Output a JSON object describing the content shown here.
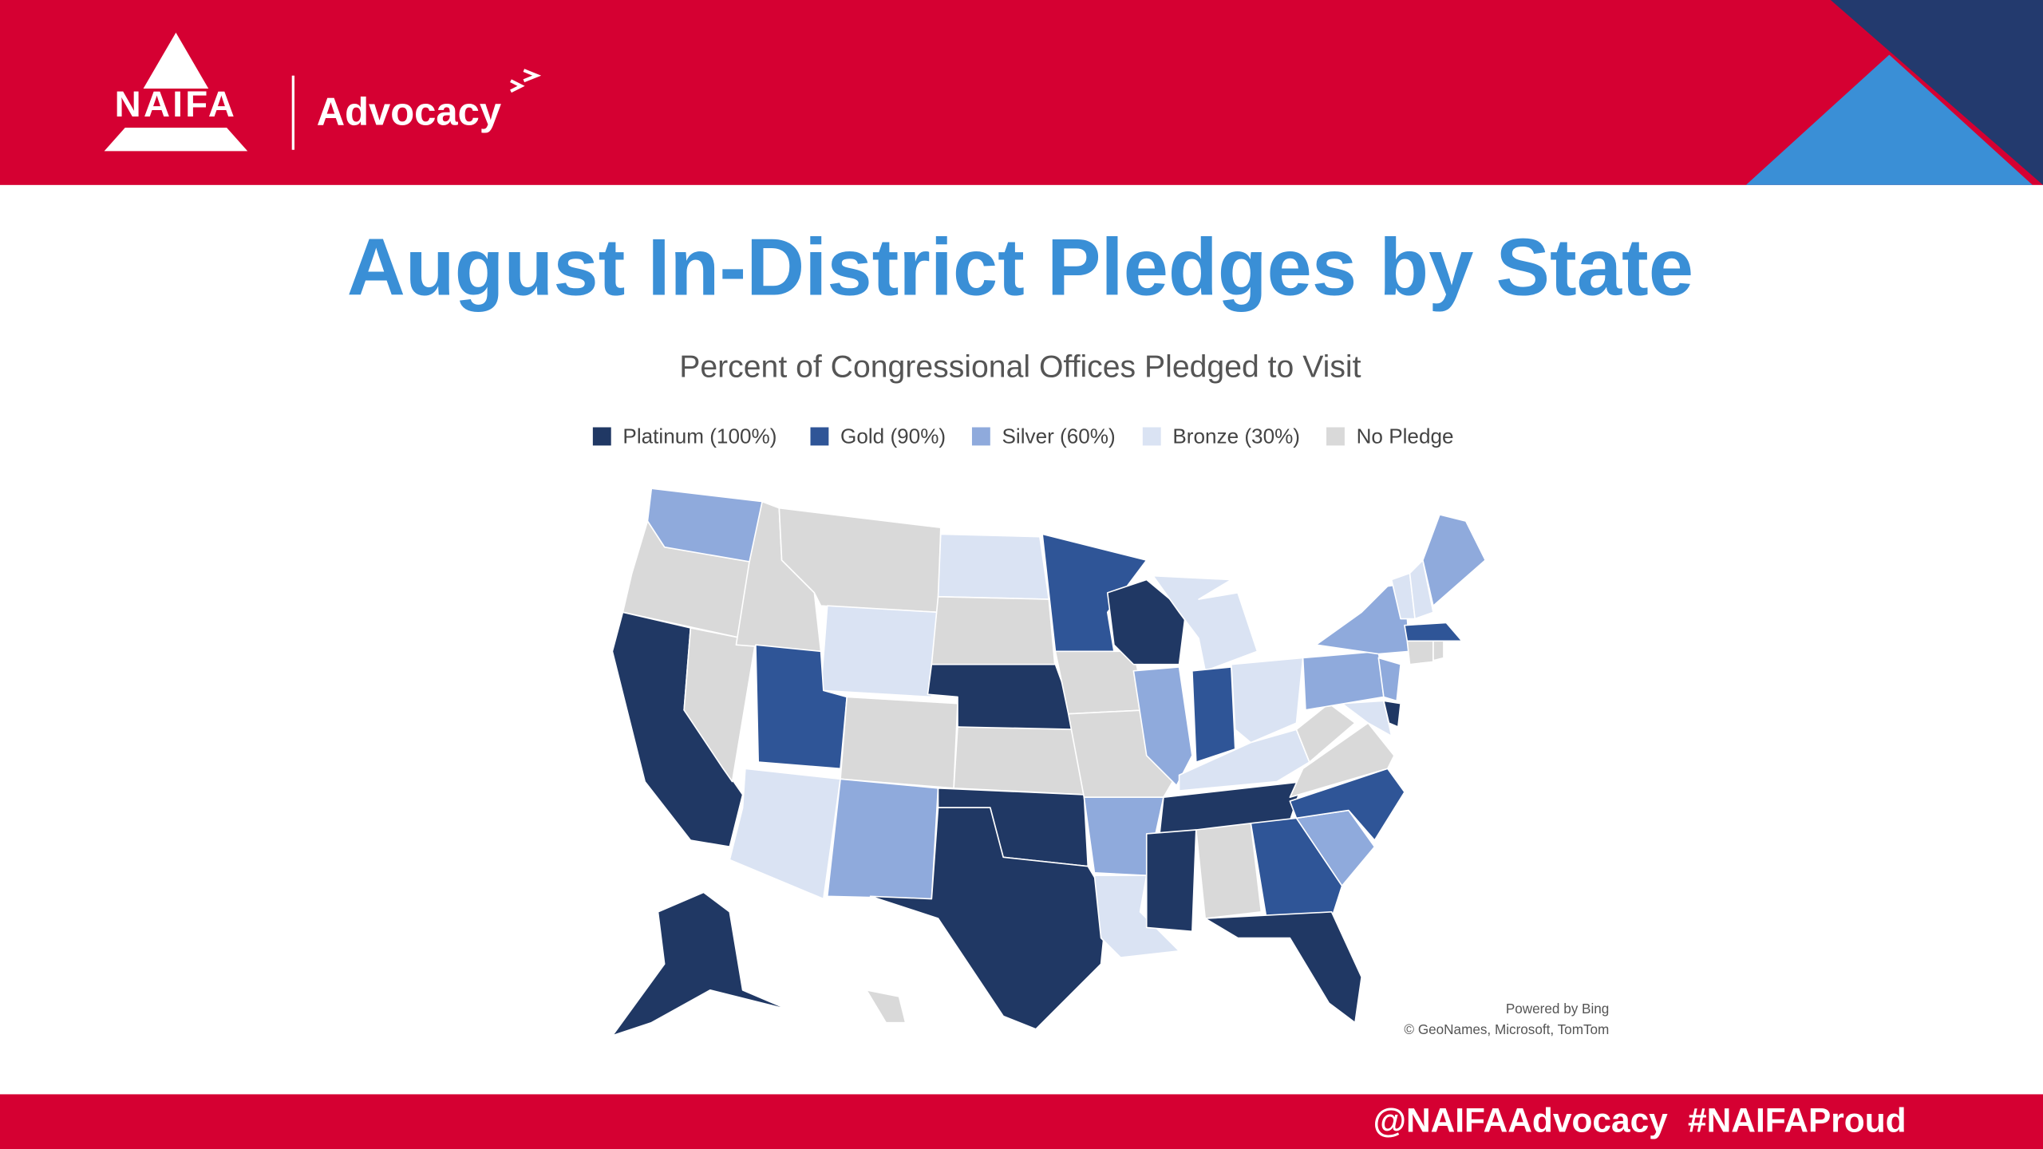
{
  "header": {
    "logo": "NAIFA",
    "section": "Advocacy"
  },
  "title": "August In-District Pledges by State",
  "subtitle": "Percent of Congressional Offices Pledged to Visit",
  "legend": [
    {
      "label": "Platinum (100%)",
      "color": "#203864"
    },
    {
      "label": "Gold (90%)",
      "color": "#2f5597"
    },
    {
      "label": "Silver (60%)",
      "color": "#8faadc"
    },
    {
      "label": "Bronze (30%)",
      "color": "#dae3f3"
    },
    {
      "label": "No Pledge",
      "color": "#d9d9d9"
    }
  ],
  "map": {
    "type": "choropleth",
    "state_levels": [
      2,
      4,
      0,
      4,
      4,
      4,
      3,
      1,
      4,
      3,
      2,
      3,
      4,
      0,
      4,
      0,
      0,
      1,
      4,
      4,
      2,
      3,
      0,
      2,
      3,
      1,
      3,
      3,
      0,
      0,
      4,
      1,
      0,
      2,
      1,
      4,
      4,
      3,
      0,
      2,
      2,
      2,
      3,
      3,
      2,
      1,
      4,
      4,
      0,
      4
    ]
  },
  "attribution": [
    "Powered by Bing",
    "© GeoNames, Microsoft, TomTom"
  ],
  "footer": [
    "@NAIFAAdvocacy",
    "#NAIFAProud"
  ]
}
